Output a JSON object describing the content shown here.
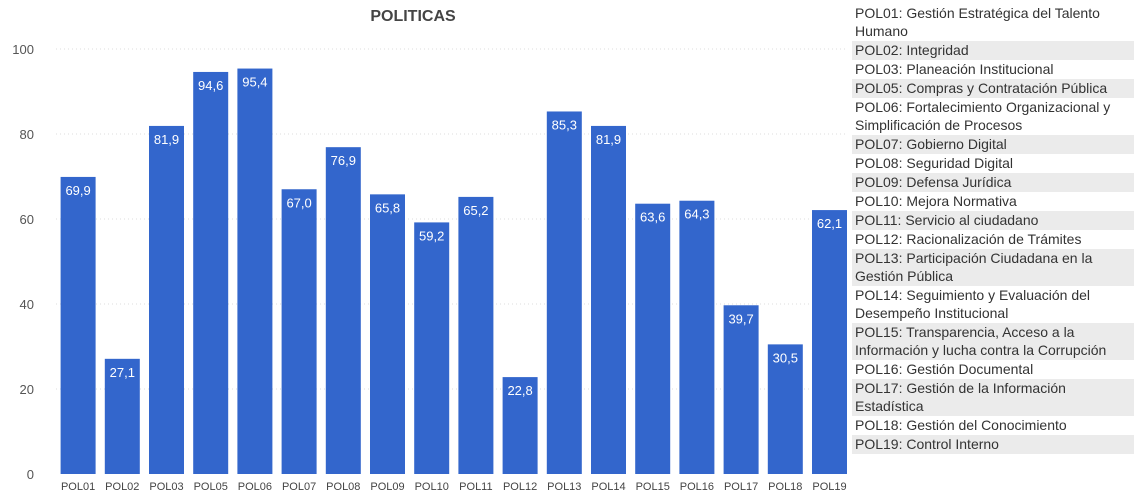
{
  "chart_data": {
    "type": "bar",
    "title": "POLITICAS",
    "categories": [
      "POL01",
      "POL02",
      "POL03",
      "POL05",
      "POL06",
      "POL07",
      "POL08",
      "POL09",
      "POL10",
      "POL11",
      "POL12",
      "POL13",
      "POL14",
      "POL15",
      "POL16",
      "POL17",
      "POL18",
      "POL19"
    ],
    "values": [
      69.9,
      27.1,
      81.9,
      94.6,
      95.4,
      67.0,
      76.9,
      65.8,
      59.2,
      65.2,
      22.8,
      85.3,
      81.9,
      63.6,
      64.3,
      39.7,
      30.5,
      62.1
    ],
    "value_labels": [
      "69,9",
      "27,1",
      "81,9",
      "94,6",
      "95,4",
      "67,0",
      "76,9",
      "65,8",
      "59,2",
      "65,2",
      "22,8",
      "85,3",
      "81,9",
      "63,6",
      "64,3",
      "39,7",
      "30,5",
      "62,1"
    ],
    "ylim": [
      0,
      100
    ],
    "yticks": [
      0,
      20,
      40,
      60,
      80,
      100
    ],
    "grid": true,
    "xlabel": "",
    "ylabel": "",
    "bar_color": "#3366cc"
  },
  "legend": [
    "POL01: Gestión Estratégica del Talento Humano",
    "POL02: Integridad",
    "POL03: Planeación Institucional",
    "POL05: Compras y Contratación Pública",
    "POL06: Fortalecimiento Organizacional y Simplificación de Procesos",
    "POL07: Gobierno Digital",
    "POL08: Seguridad Digital",
    "POL09: Defensa Jurídica",
    "POL10: Mejora Normativa",
    "POL11: Servicio al ciudadano",
    "POL12: Racionalización de Trámites",
    "POL13: Participación Ciudadana en la Gestión Pública",
    "POL14: Seguimiento y Evaluación del Desempeño Institucional",
    "POL15: Transparencia, Acceso a la Información y lucha contra la Corrupción",
    "POL16: Gestión Documental",
    "POL17: Gestión de la Información Estadística",
    "POL18: Gestión del Conocimiento",
    "POL19: Control Interno"
  ]
}
